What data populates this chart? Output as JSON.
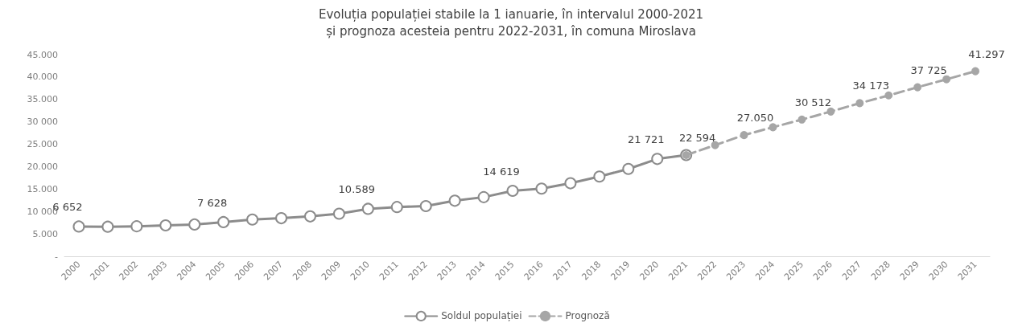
{
  "chart_data": {
    "type": "line",
    "title": "Evoluția populației stabile la 1 ianuarie, în intervalul 2000-2021\nși prognoza acesteia pentru 2022-2031, în comuna Miroslava",
    "categories": [
      "2000",
      "2001",
      "2002",
      "2003",
      "2004",
      "2005",
      "2006",
      "2007",
      "2008",
      "2009",
      "2010",
      "2011",
      "2012",
      "2013",
      "2014",
      "2015",
      "2016",
      "2017",
      "2018",
      "2019",
      "2020",
      "2021",
      "2022",
      "2023",
      "2024",
      "2025",
      "2026",
      "2027",
      "2028",
      "2029",
      "2030",
      "2031"
    ],
    "series": [
      {
        "name": "Soldul populației",
        "color": "#8c8c8c",
        "marker": "emptyCircle",
        "line_style": "solid",
        "values": [
          6652,
          6600,
          6700,
          6900,
          7100,
          7628,
          8200,
          8500,
          8900,
          9500,
          10589,
          11000,
          11200,
          12400,
          13200,
          14619,
          15100,
          16300,
          17800,
          19500,
          21721,
          22594,
          null,
          null,
          null,
          null,
          null,
          null,
          null,
          null,
          null,
          null
        ],
        "value_labels": [
          "6 652",
          null,
          null,
          null,
          null,
          "7 628",
          null,
          null,
          null,
          null,
          "10.589",
          null,
          null,
          null,
          null,
          "14 619",
          null,
          null,
          null,
          null,
          "21 721",
          null,
          null,
          null,
          null,
          null,
          null,
          null,
          null,
          null,
          null,
          null
        ]
      },
      {
        "name": "Prognoză",
        "color": "#a6a6a6",
        "marker": "circle",
        "line_style": "dashed",
        "values": [
          null,
          null,
          null,
          null,
          null,
          null,
          null,
          null,
          null,
          null,
          null,
          null,
          null,
          null,
          null,
          null,
          null,
          null,
          null,
          null,
          null,
          22594,
          24800,
          27050,
          28800,
          30512,
          32300,
          34173,
          35900,
          37725,
          39500,
          41297
        ],
        "value_labels": [
          null,
          null,
          null,
          null,
          null,
          null,
          null,
          null,
          null,
          null,
          null,
          null,
          null,
          null,
          null,
          null,
          null,
          null,
          null,
          null,
          null,
          "22 594",
          null,
          "27.050",
          null,
          "30 512",
          null,
          "34 173",
          null,
          "37 725",
          null,
          "41.297"
        ]
      }
    ],
    "ylim": [
      0,
      45000
    ],
    "yticks": [
      {
        "value": 0,
        "label": "-"
      },
      {
        "value": 5000,
        "label": "5.000"
      },
      {
        "value": 10000,
        "label": "10 000"
      },
      {
        "value": 15000,
        "label": "15.000"
      },
      {
        "value": 20000,
        "label": "20.000"
      },
      {
        "value": 25000,
        "label": "25.000"
      },
      {
        "value": 30000,
        "label": "30 000"
      },
      {
        "value": 35000,
        "label": "35.000"
      },
      {
        "value": 40000,
        "label": "40.000"
      },
      {
        "value": 45000,
        "label": "45.000"
      }
    ],
    "grid": false,
    "legend": "bottom"
  }
}
